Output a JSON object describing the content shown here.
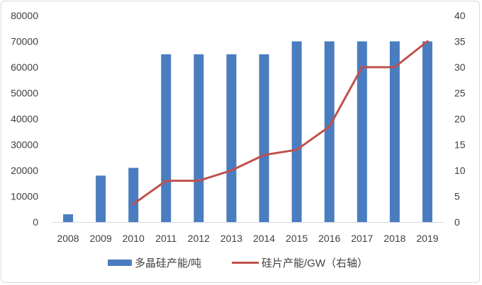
{
  "chart_data": {
    "type": "bar+line",
    "categories": [
      "2008",
      "2009",
      "2010",
      "2011",
      "2012",
      "2013",
      "2014",
      "2015",
      "2016",
      "2017",
      "2018",
      "2019"
    ],
    "series": [
      {
        "name": "多晶硅产能/吨",
        "type": "bar",
        "axis": "left",
        "color": "#4a7dbf",
        "values": [
          3000,
          18000,
          21000,
          65000,
          65000,
          65000,
          65000,
          70000,
          70000,
          70000,
          70000,
          70000
        ]
      },
      {
        "name": "硅片产能/GW（右轴）",
        "type": "line",
        "axis": "right",
        "color": "#c0504d",
        "values": [
          null,
          null,
          3.5,
          8,
          8,
          10,
          13,
          14,
          18.5,
          30,
          30,
          35
        ]
      }
    ],
    "left_axis": {
      "min": 0,
      "max": 80000,
      "step": 10000,
      "tick_labels": [
        "0",
        "10000",
        "20000",
        "30000",
        "40000",
        "50000",
        "60000",
        "70000",
        "80000"
      ]
    },
    "right_axis": {
      "min": 0,
      "max": 40,
      "step": 5,
      "tick_labels": [
        "0",
        "5",
        "10",
        "15",
        "20",
        "25",
        "30",
        "35",
        "40"
      ]
    },
    "grid": false,
    "legend_position": "bottom"
  }
}
